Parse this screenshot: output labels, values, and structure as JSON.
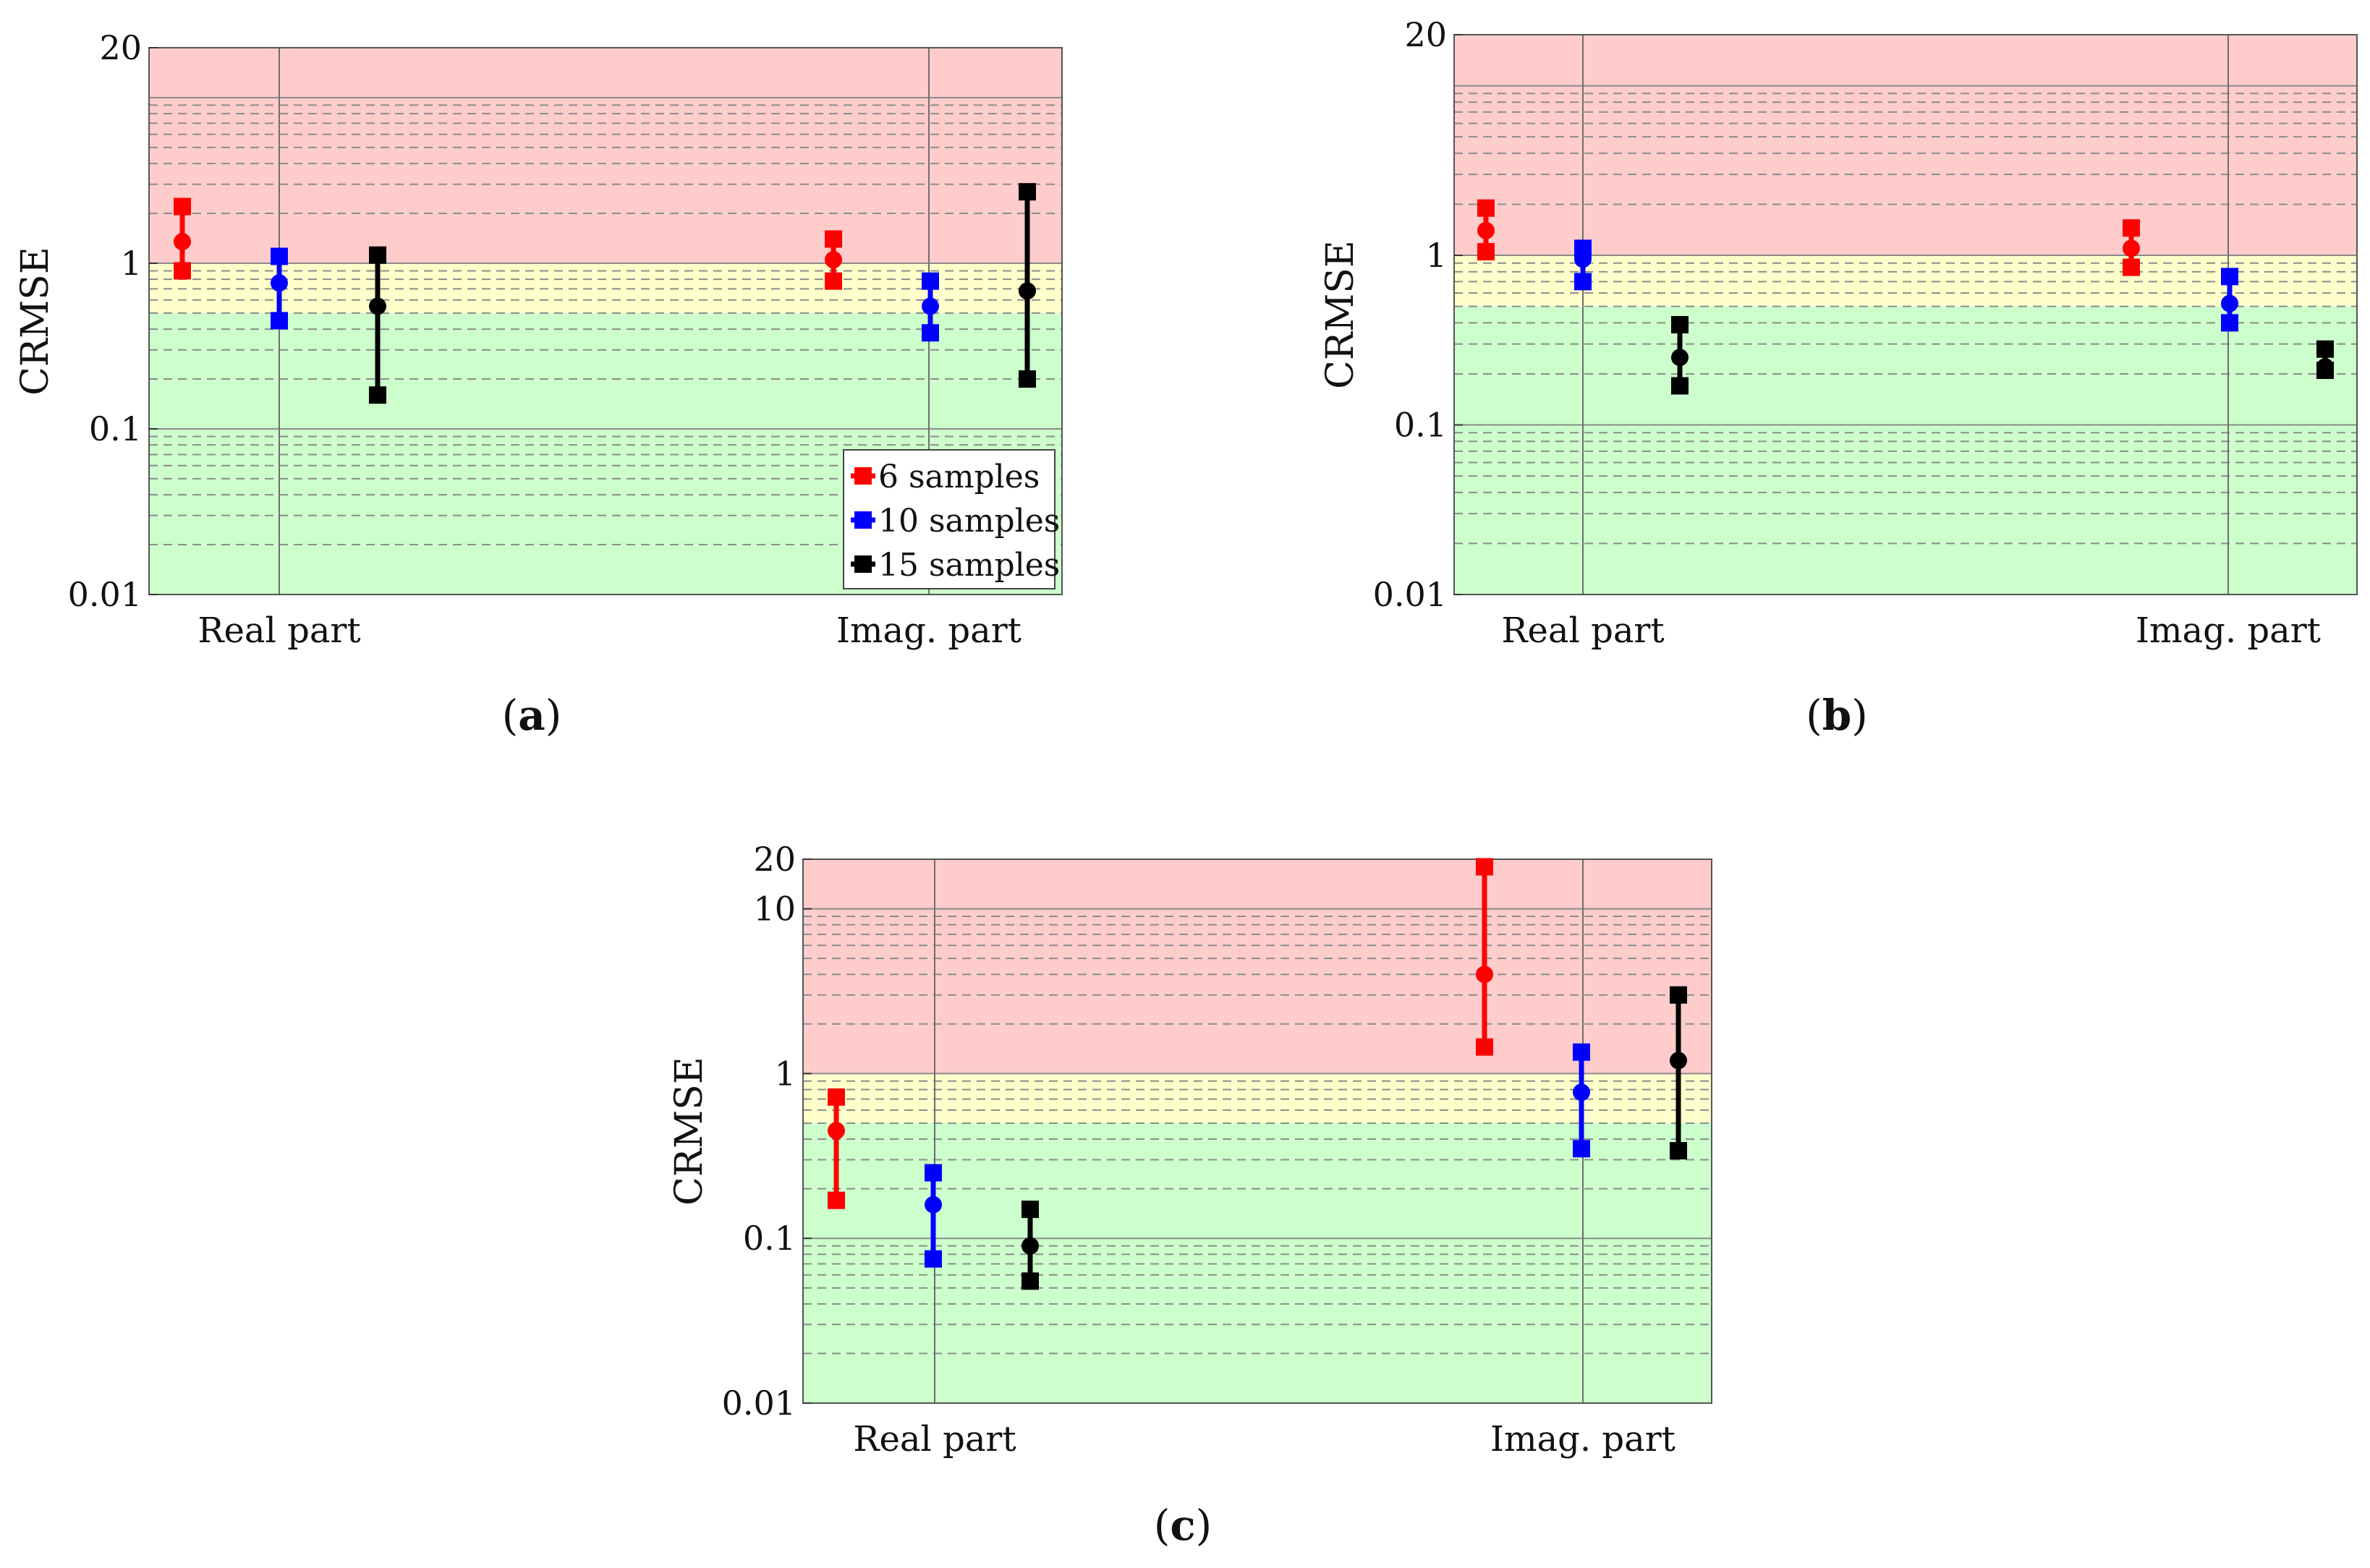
{
  "panel_labels": {
    "a": "a",
    "b": "b",
    "c": "c"
  },
  "chart_data": [
    {
      "id": "a",
      "type": "errorbar",
      "ylabel": "CRMSE",
      "yscale": "log",
      "ylim": [
        0.01,
        20
      ],
      "yticks": [
        0.01,
        0.1,
        1,
        20
      ],
      "yticklabels": [
        "0.01",
        "0.1",
        "1",
        "20"
      ],
      "categories": [
        "Real part",
        "Imag. part"
      ],
      "zones": [
        {
          "from": 0.01,
          "to": 0.5,
          "color": "#ccffcc"
        },
        {
          "from": 0.5,
          "to": 1,
          "color": "#ffffcc"
        },
        {
          "from": 1,
          "to": 20,
          "color": "#ffcccc"
        }
      ],
      "legend": {
        "position": "bottom-right",
        "entries": [
          "6 samples",
          "10 samples",
          "15 samples"
        ]
      },
      "series": [
        {
          "name": "6 samples",
          "color": "#ff0000",
          "points": [
            {
              "category": "Real part",
              "low": 0.9,
              "mid": 1.35,
              "high": 2.2
            },
            {
              "category": "Imag. part",
              "low": 0.78,
              "mid": 1.05,
              "high": 1.4
            }
          ]
        },
        {
          "name": "10 samples",
          "color": "#0000ff",
          "points": [
            {
              "category": "Real part",
              "low": 0.45,
              "mid": 0.76,
              "high": 1.1
            },
            {
              "category": "Imag. part",
              "low": 0.38,
              "mid": 0.55,
              "high": 0.78
            }
          ]
        },
        {
          "name": "15 samples",
          "color": "#000000",
          "points": [
            {
              "category": "Real part",
              "low": 0.16,
              "mid": 0.55,
              "high": 1.12
            },
            {
              "category": "Imag. part",
              "low": 0.2,
              "mid": 0.68,
              "high": 2.7
            }
          ]
        }
      ]
    },
    {
      "id": "b",
      "type": "errorbar",
      "ylabel": "CRMSE",
      "yscale": "log",
      "ylim": [
        0.01,
        20
      ],
      "yticks": [
        0.01,
        0.1,
        1,
        20
      ],
      "yticklabels": [
        "0.01",
        "0.1",
        "1",
        "20"
      ],
      "categories": [
        "Real part",
        "Imag. part"
      ],
      "zones": [
        {
          "from": 0.01,
          "to": 0.5,
          "color": "#ccffcc"
        },
        {
          "from": 0.5,
          "to": 1,
          "color": "#ffffcc"
        },
        {
          "from": 1,
          "to": 20,
          "color": "#ffcccc"
        }
      ],
      "series": [
        {
          "name": "6 samples",
          "color": "#ff0000",
          "points": [
            {
              "category": "Real part",
              "low": 1.05,
              "mid": 1.4,
              "high": 1.9
            },
            {
              "category": "Imag. part",
              "low": 0.85,
              "mid": 1.1,
              "high": 1.45
            }
          ]
        },
        {
          "name": "10 samples",
          "color": "#0000ff",
          "points": [
            {
              "category": "Real part",
              "low": 0.7,
              "mid": 0.95,
              "high": 1.1
            },
            {
              "category": "Imag. part",
              "low": 0.4,
              "mid": 0.52,
              "high": 0.75
            }
          ]
        },
        {
          "name": "15 samples",
          "color": "#000000",
          "points": [
            {
              "category": "Real part",
              "low": 0.17,
              "mid": 0.25,
              "high": 0.39
            },
            {
              "category": "Imag. part",
              "low": 0.21,
              "mid": 0.22,
              "high": 0.28
            }
          ]
        }
      ]
    },
    {
      "id": "c",
      "type": "errorbar",
      "ylabel": "CRMSE",
      "yscale": "log",
      "ylim": [
        0.01,
        20
      ],
      "yticks": [
        0.01,
        0.1,
        1,
        10,
        20
      ],
      "yticklabels": [
        "0.01",
        "0.1",
        "1",
        "10",
        "20"
      ],
      "categories": [
        "Real part",
        "Imag. part"
      ],
      "zones": [
        {
          "from": 0.01,
          "to": 0.5,
          "color": "#ccffcc"
        },
        {
          "from": 0.5,
          "to": 1,
          "color": "#ffffcc"
        },
        {
          "from": 1,
          "to": 20,
          "color": "#ffcccc"
        }
      ],
      "series": [
        {
          "name": "6 samples",
          "color": "#ff0000",
          "points": [
            {
              "category": "Real part",
              "low": 0.17,
              "mid": 0.45,
              "high": 0.72
            },
            {
              "category": "Imag. part",
              "low": 1.45,
              "mid": 4.0,
              "high": 18
            }
          ]
        },
        {
          "name": "10 samples",
          "color": "#0000ff",
          "points": [
            {
              "category": "Real part",
              "low": 0.075,
              "mid": 0.16,
              "high": 0.25
            },
            {
              "category": "Imag. part",
              "low": 0.35,
              "mid": 0.77,
              "high": 1.35
            }
          ]
        },
        {
          "name": "15 samples",
          "color": "#000000",
          "points": [
            {
              "category": "Real part",
              "low": 0.055,
              "mid": 0.09,
              "high": 0.15
            },
            {
              "category": "Imag. part",
              "low": 0.34,
              "mid": 1.2,
              "high": 3.0
            }
          ]
        }
      ]
    }
  ]
}
